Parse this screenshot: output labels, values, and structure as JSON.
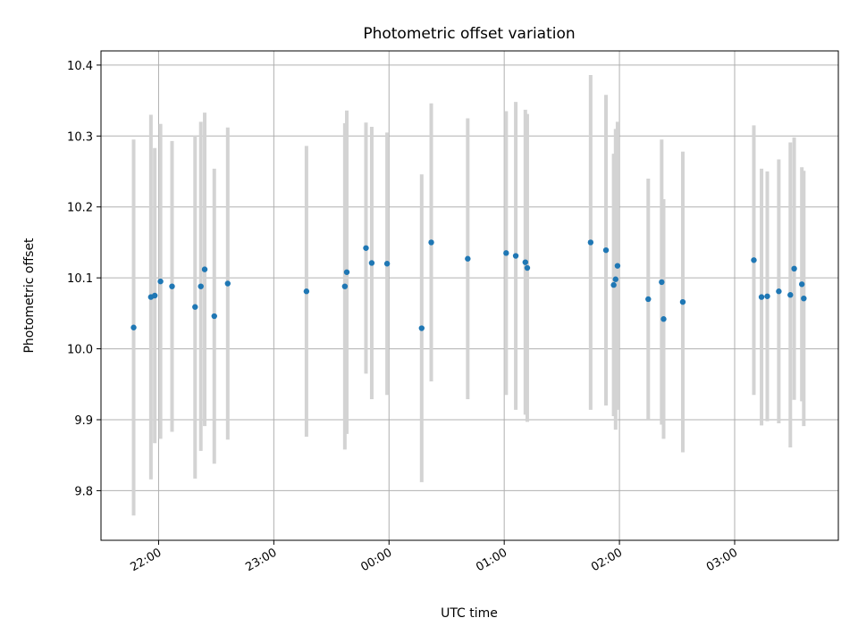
{
  "chart_data": {
    "type": "scatter",
    "title": "Photometric offset variation",
    "xlabel": "UTC time",
    "ylabel": "Photometric offset",
    "x_axis_type": "time",
    "x_ticks": [
      "22:00",
      "23:00",
      "00:00",
      "01:00",
      "02:00",
      "03:00"
    ],
    "xlim": [
      "21:30",
      "03:54"
    ],
    "ylim": [
      9.73,
      10.42
    ],
    "y_ticks": [
      9.8,
      9.9,
      10.0,
      10.1,
      10.2,
      10.3,
      10.4
    ],
    "grid": true,
    "colors": {
      "points": "#1f77b4",
      "errorbars": "#d3d3d3",
      "grid": "#b0b0b0"
    },
    "points": [
      {
        "x": "21:47",
        "y": 10.03,
        "err": 0.265
      },
      {
        "x": "21:56",
        "y": 10.073,
        "err": 0.257
      },
      {
        "x": "21:58",
        "y": 10.075,
        "err": 0.208
      },
      {
        "x": "22:01",
        "y": 10.095,
        "err": 0.222
      },
      {
        "x": "22:07",
        "y": 10.088,
        "err": 0.205
      },
      {
        "x": "22:19",
        "y": 10.059,
        "err": 0.242
      },
      {
        "x": "22:22",
        "y": 10.088,
        "err": 0.232
      },
      {
        "x": "22:24",
        "y": 10.112,
        "err": 0.221
      },
      {
        "x": "22:29",
        "y": 10.046,
        "err": 0.208
      },
      {
        "x": "22:36",
        "y": 10.092,
        "err": 0.22
      },
      {
        "x": "23:17",
        "y": 10.081,
        "err": 0.205
      },
      {
        "x": "23:37",
        "y": 10.088,
        "err": 0.23
      },
      {
        "x": "23:38",
        "y": 10.108,
        "err": 0.228
      },
      {
        "x": "23:48",
        "y": 10.142,
        "err": 0.177
      },
      {
        "x": "23:51",
        "y": 10.121,
        "err": 0.192
      },
      {
        "x": "23:59",
        "y": 10.12,
        "err": 0.185
      },
      {
        "x": "00:17",
        "y": 10.029,
        "err": 0.217
      },
      {
        "x": "00:22",
        "y": 10.15,
        "err": 0.196
      },
      {
        "x": "00:41",
        "y": 10.127,
        "err": 0.198
      },
      {
        "x": "01:01",
        "y": 10.135,
        "err": 0.2
      },
      {
        "x": "01:06",
        "y": 10.131,
        "err": 0.217
      },
      {
        "x": "01:11",
        "y": 10.122,
        "err": 0.215
      },
      {
        "x": "01:12",
        "y": 10.114,
        "err": 0.217
      },
      {
        "x": "01:45",
        "y": 10.15,
        "err": 0.236
      },
      {
        "x": "01:53",
        "y": 10.139,
        "err": 0.219
      },
      {
        "x": "01:57",
        "y": 10.09,
        "err": 0.185
      },
      {
        "x": "01:58",
        "y": 10.098,
        "err": 0.212
      },
      {
        "x": "01:59",
        "y": 10.117,
        "err": 0.203
      },
      {
        "x": "02:15",
        "y": 10.07,
        "err": 0.17
      },
      {
        "x": "02:22",
        "y": 10.094,
        "err": 0.201
      },
      {
        "x": "02:23",
        "y": 10.042,
        "err": 0.169
      },
      {
        "x": "02:33",
        "y": 10.066,
        "err": 0.212
      },
      {
        "x": "03:10",
        "y": 10.125,
        "err": 0.19
      },
      {
        "x": "03:14",
        "y": 10.073,
        "err": 0.181
      },
      {
        "x": "03:17",
        "y": 10.074,
        "err": 0.176
      },
      {
        "x": "03:23",
        "y": 10.081,
        "err": 0.186
      },
      {
        "x": "03:29",
        "y": 10.076,
        "err": 0.215
      },
      {
        "x": "03:31",
        "y": 10.113,
        "err": 0.185
      },
      {
        "x": "03:35",
        "y": 10.091,
        "err": 0.165
      },
      {
        "x": "03:36",
        "y": 10.071,
        "err": 0.18
      }
    ]
  }
}
